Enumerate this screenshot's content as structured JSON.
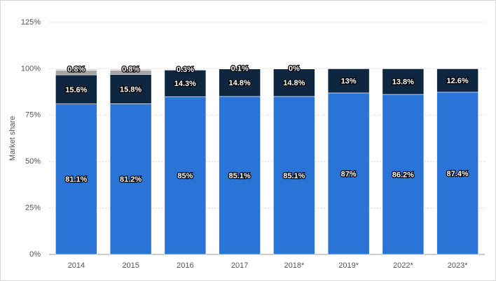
{
  "chart_data": {
    "type": "stacked-bar",
    "y_label": "Market share",
    "categories": [
      "2014",
      "2015",
      "2016",
      "2017",
      "2018*",
      "2019*",
      "2022*",
      "2023*"
    ],
    "series": [
      {
        "color": "#2a74d8",
        "values": [
          81.1,
          81.2,
          85,
          85.1,
          85.1,
          87,
          86.2,
          87.4
        ],
        "value_labels": [
          "81.1%",
          "81.2%",
          "85%",
          "85.1%",
          "85.1%",
          "87%",
          "86.2%",
          "87.4%"
        ]
      },
      {
        "color": "#0f2640",
        "values": [
          15.6,
          15.8,
          14.3,
          14.8,
          14.8,
          13,
          13.8,
          12.6
        ],
        "value_labels": [
          "15.6%",
          "15.8%",
          "14.3%",
          "14.8%",
          "14.8%",
          "13%",
          "13.8%",
          "12.6%"
        ]
      },
      {
        "color": "#a5a5a5",
        "values": [
          2.5,
          2.2,
          null,
          null,
          null,
          null,
          null,
          null
        ]
      },
      {
        "color": "#d9d9d9",
        "values": [
          0.8,
          0.8,
          0.3,
          0.1,
          0,
          null,
          null,
          null
        ],
        "value_labels": [
          "0.8%",
          "0.8%",
          "0.3%",
          "0.1%",
          "0%",
          null,
          null,
          null
        ]
      }
    ],
    "ylim": [
      0,
      125
    ],
    "yticks": [
      {
        "value": 0,
        "label": "0%"
      },
      {
        "value": 25,
        "label": "25%"
      },
      {
        "value": 50,
        "label": "50%"
      },
      {
        "value": 75,
        "label": "75%"
      },
      {
        "value": 100,
        "label": "100%"
      },
      {
        "value": 125,
        "label": "125%"
      }
    ],
    "grid": true
  }
}
